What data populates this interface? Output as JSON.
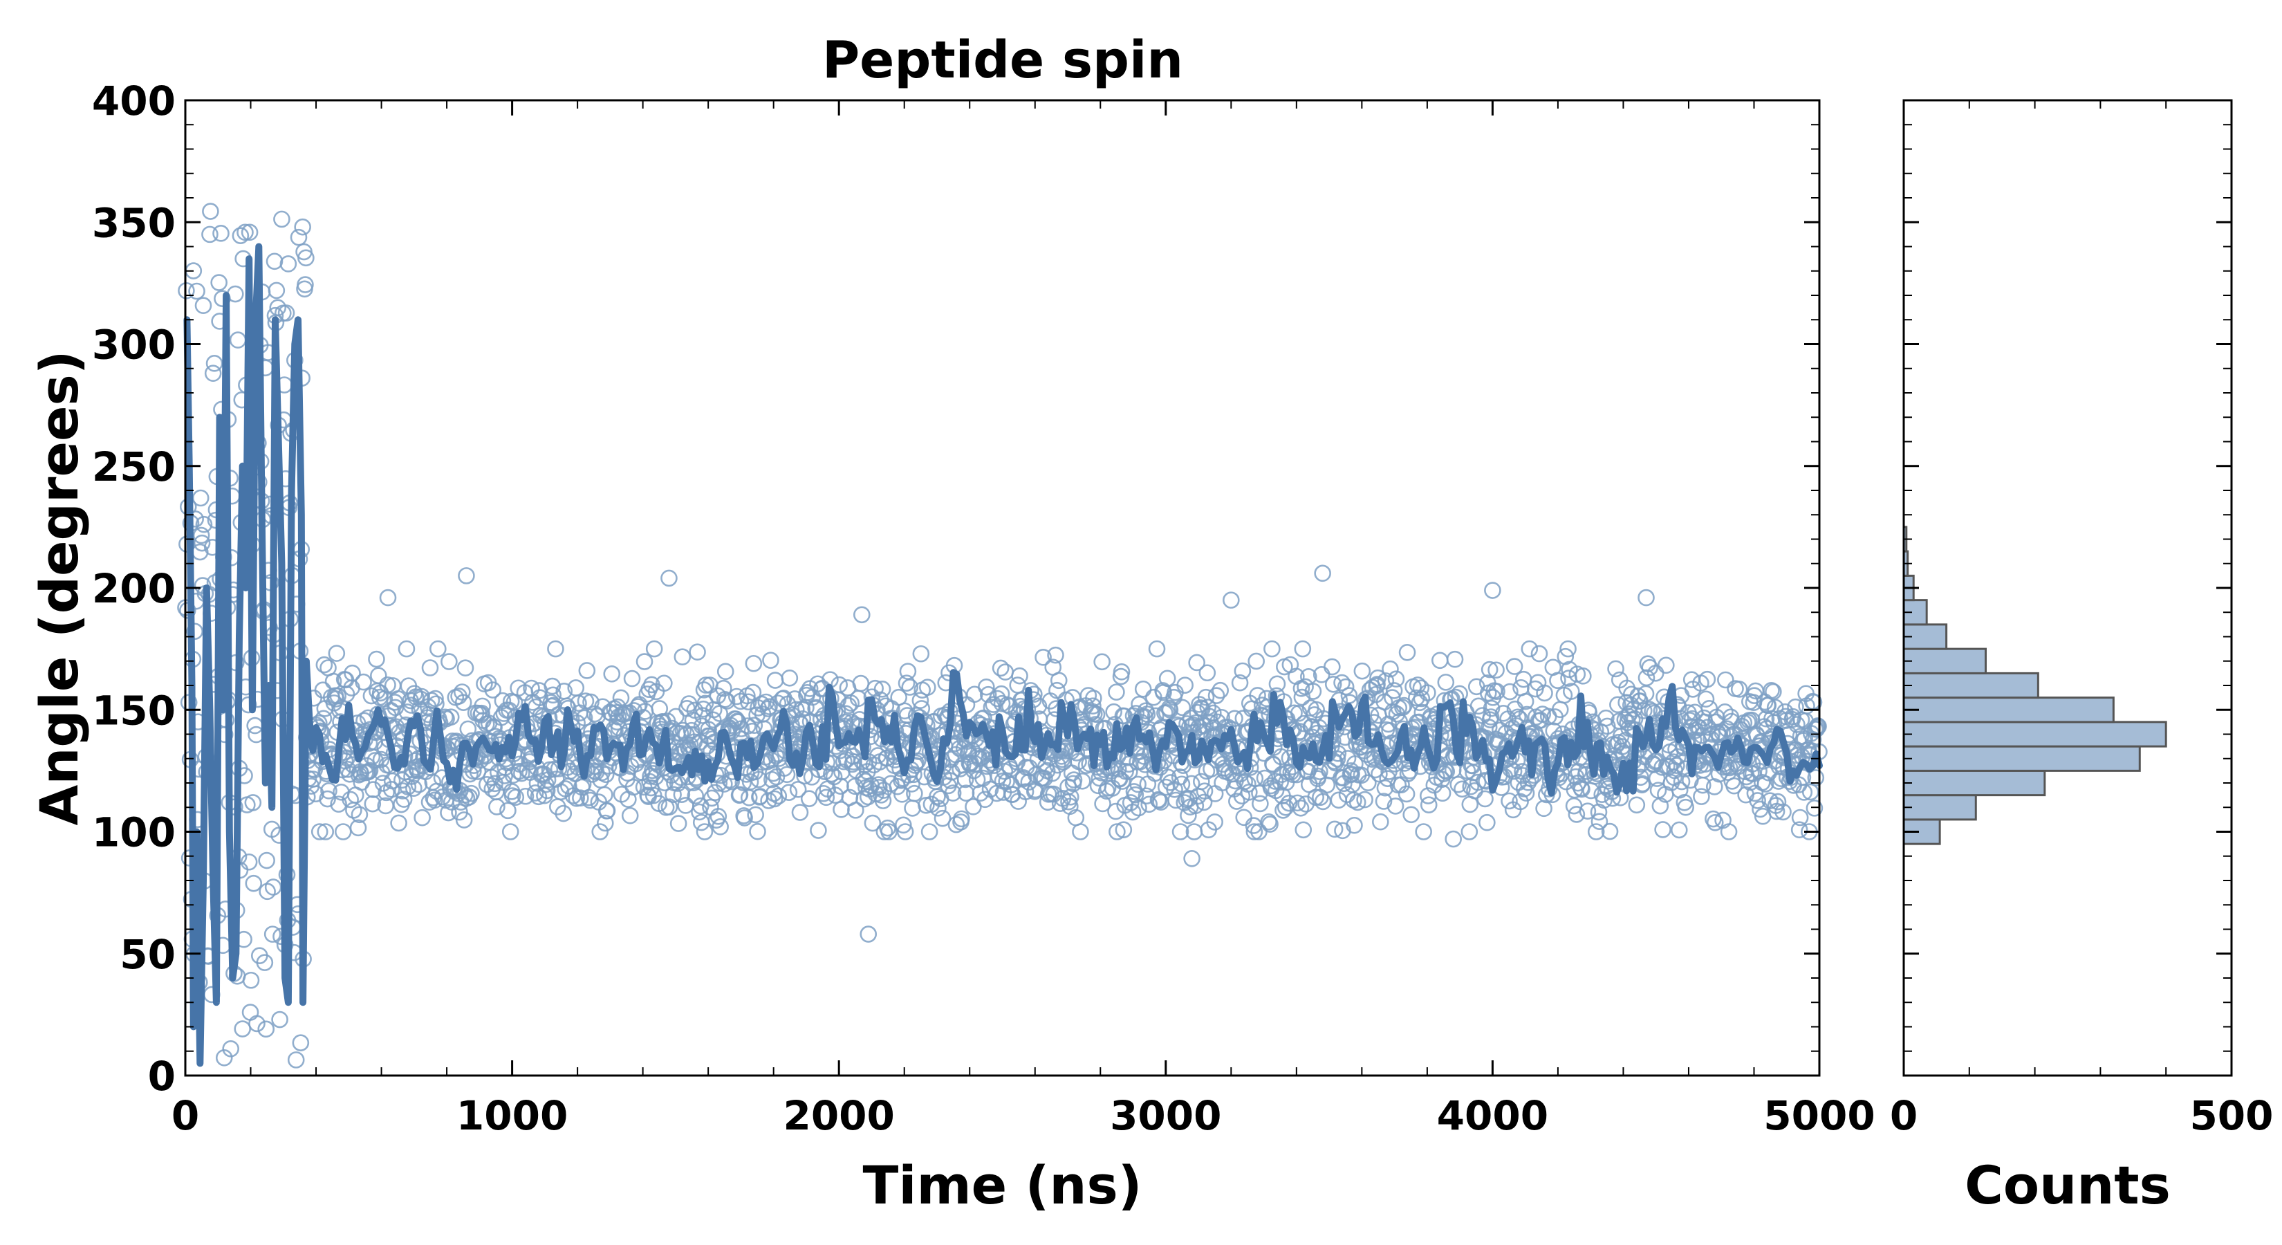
{
  "chart_data": [
    {
      "type": "scatter",
      "title": "Peptide spin",
      "xlabel": "Time (ns)",
      "ylabel": "Angle (degrees)",
      "xlim": [
        0,
        5000
      ],
      "ylim": [
        0,
        400
      ],
      "xticks": [
        "0",
        "1000",
        "2000",
        "3000",
        "4000",
        "5000"
      ],
      "yticks": [
        "0",
        "50",
        "100",
        "150",
        "200",
        "250",
        "300",
        "350",
        "400"
      ],
      "grid": false,
      "legend": "none",
      "series": [
        {
          "kind": "scatter",
          "marker": "open-circle",
          "color": "#7ea0c4",
          "n_points": 2500,
          "x_range": [
            0,
            5000
          ],
          "early_phase": {
            "x_range": [
              0,
              370
            ],
            "y_range": [
              5,
              355
            ]
          },
          "steady_phase": {
            "x_range": [
              370,
              5000
            ],
            "y_center": 135,
            "y_spread": [
              100,
              175
            ]
          },
          "outliers": [
            {
              "x": 860,
              "y": 205
            },
            {
              "x": 620,
              "y": 196
            },
            {
              "x": 1480,
              "y": 204
            },
            {
              "x": 2090,
              "y": 58
            },
            {
              "x": 3080,
              "y": 89
            },
            {
              "x": 3480,
              "y": 206
            },
            {
              "x": 4000,
              "y": 199
            },
            {
              "x": 4470,
              "y": 196
            },
            {
              "x": 2070,
              "y": 189
            },
            {
              "x": 3200,
              "y": 195
            },
            {
              "x": 3880,
              "y": 97
            },
            {
              "x": 3150,
              "y": 104
            }
          ]
        },
        {
          "kind": "line",
          "color": "#4674a8",
          "description": "moving average",
          "early_points": [
            [
              5,
              310
            ],
            [
              12,
              250
            ],
            [
              20,
              160
            ],
            [
              25,
              20
            ],
            [
              35,
              100
            ],
            [
              45,
              5
            ],
            [
              55,
              80
            ],
            [
              65,
              200
            ],
            [
              75,
              150
            ],
            [
              85,
              80
            ],
            [
              95,
              30
            ],
            [
              105,
              270
            ],
            [
              115,
              150
            ],
            [
              125,
              320
            ],
            [
              135,
              100
            ],
            [
              145,
              40
            ],
            [
              155,
              50
            ],
            [
              165,
              180
            ],
            [
              175,
              250
            ],
            [
              185,
              200
            ],
            [
              195,
              335
            ],
            [
              205,
              150
            ],
            [
              215,
              310
            ],
            [
              225,
              340
            ],
            [
              235,
              220
            ],
            [
              245,
              120
            ],
            [
              255,
              160
            ],
            [
              265,
              110
            ],
            [
              275,
              310
            ],
            [
              285,
              260
            ],
            [
              295,
              210
            ],
            [
              305,
              40
            ],
            [
              315,
              30
            ],
            [
              325,
              240
            ],
            [
              335,
              300
            ],
            [
              345,
              310
            ],
            [
              355,
              230
            ],
            [
              360,
              30
            ],
            [
              370,
              170
            ],
            [
              380,
              145
            ]
          ],
          "steady_center": 135
        }
      ]
    },
    {
      "type": "bar",
      "orientation": "horizontal",
      "xlabel": "Counts",
      "xlim": [
        0,
        500
      ],
      "xticks": [
        "0",
        "500"
      ],
      "ylim": [
        0,
        400
      ],
      "bar_color": "#a5bcd6",
      "edge_color": "#555555",
      "bins": [
        {
          "y0": 95,
          "y1": 105,
          "count": 55
        },
        {
          "y0": 105,
          "y1": 115,
          "count": 110
        },
        {
          "y0": 115,
          "y1": 125,
          "count": 215
        },
        {
          "y0": 125,
          "y1": 135,
          "count": 360
        },
        {
          "y0": 135,
          "y1": 145,
          "count": 400
        },
        {
          "y0": 145,
          "y1": 155,
          "count": 320
        },
        {
          "y0": 155,
          "y1": 165,
          "count": 205
        },
        {
          "y0": 165,
          "y1": 175,
          "count": 125
        },
        {
          "y0": 175,
          "y1": 185,
          "count": 65
        },
        {
          "y0": 185,
          "y1": 195,
          "count": 35
        },
        {
          "y0": 195,
          "y1": 205,
          "count": 15
        },
        {
          "y0": 205,
          "y1": 215,
          "count": 6
        },
        {
          "y0": 215,
          "y1": 225,
          "count": 4
        }
      ]
    }
  ]
}
